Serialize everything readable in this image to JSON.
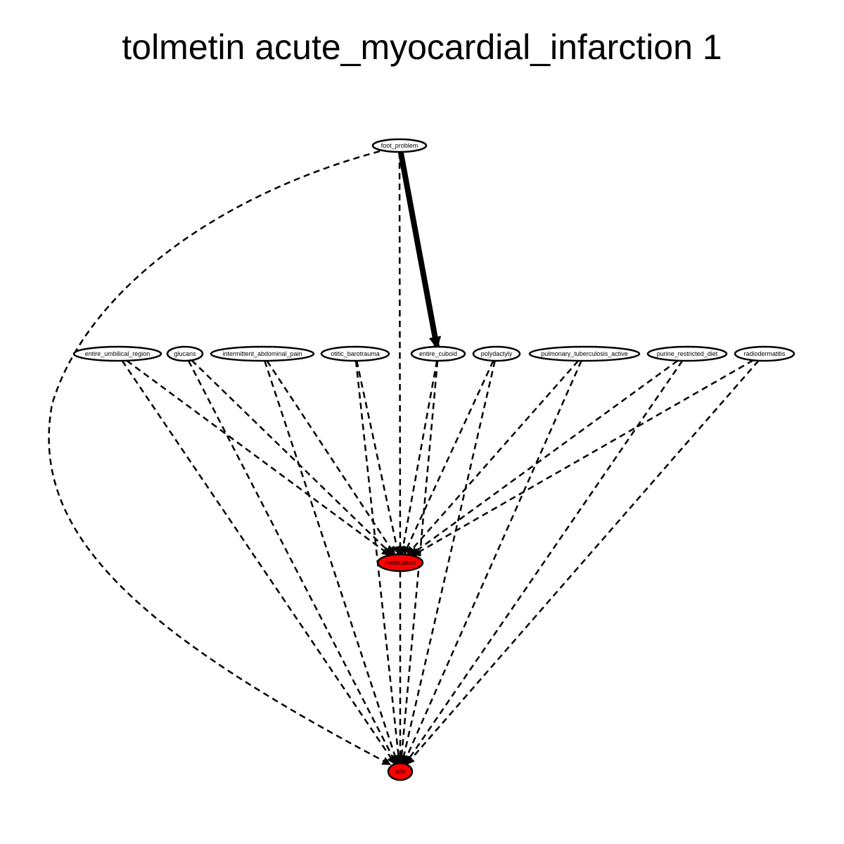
{
  "title": "tolmetin acute_myocardial_infarction 1",
  "colors": {
    "default_fill": "#ffffff",
    "target_fill": "#ff0000",
    "stroke": "#000000"
  },
  "nodes": [
    {
      "id": "foot_problem",
      "label": "foot_problem",
      "type": "default"
    },
    {
      "id": "entire_umbilical_region",
      "label": "entire_umbilical_region",
      "type": "default"
    },
    {
      "id": "glucans",
      "label": "glucans",
      "type": "default"
    },
    {
      "id": "intermittent_abdominal_pain",
      "label": "intermittent_abdominal_pain",
      "type": "default"
    },
    {
      "id": "otitic_barotrauma",
      "label": "otitic_barotrauma",
      "type": "default"
    },
    {
      "id": "entire_cuboid",
      "label": "entire_cuboid",
      "type": "default"
    },
    {
      "id": "polydactyly",
      "label": "polydactyly",
      "type": "default"
    },
    {
      "id": "pulmonary_tuberculosis_active",
      "label": "pulmonary_tuberculosis_active",
      "type": "default"
    },
    {
      "id": "purine_restricted_diet",
      "label": "purine_restricted_diet",
      "type": "default"
    },
    {
      "id": "radiodermatitis",
      "label": "radiodermatitis",
      "type": "default"
    },
    {
      "id": "medication",
      "label": "medication",
      "type": "target"
    },
    {
      "id": "ade",
      "label": "ade",
      "type": "target"
    }
  ],
  "edges": [
    {
      "from": "foot_problem",
      "to": "entire_cuboid",
      "style": "solid"
    },
    {
      "from": "foot_problem",
      "to": "medication",
      "style": "dashed"
    },
    {
      "from": "foot_problem",
      "to": "ade",
      "style": "dashed"
    },
    {
      "from": "entire_umbilical_region",
      "to": "medication",
      "style": "dashed"
    },
    {
      "from": "entire_umbilical_region",
      "to": "ade",
      "style": "dashed"
    },
    {
      "from": "glucans",
      "to": "medication",
      "style": "dashed"
    },
    {
      "from": "glucans",
      "to": "ade",
      "style": "dashed"
    },
    {
      "from": "intermittent_abdominal_pain",
      "to": "medication",
      "style": "dashed"
    },
    {
      "from": "intermittent_abdominal_pain",
      "to": "ade",
      "style": "dashed"
    },
    {
      "from": "otitic_barotrauma",
      "to": "medication",
      "style": "dashed"
    },
    {
      "from": "otitic_barotrauma",
      "to": "ade",
      "style": "dashed"
    },
    {
      "from": "entire_cuboid",
      "to": "medication",
      "style": "dashed"
    },
    {
      "from": "entire_cuboid",
      "to": "ade",
      "style": "dashed"
    },
    {
      "from": "polydactyly",
      "to": "medication",
      "style": "dashed"
    },
    {
      "from": "polydactyly",
      "to": "ade",
      "style": "dashed"
    },
    {
      "from": "pulmonary_tuberculosis_active",
      "to": "medication",
      "style": "dashed"
    },
    {
      "from": "pulmonary_tuberculosis_active",
      "to": "ade",
      "style": "dashed"
    },
    {
      "from": "purine_restricted_diet",
      "to": "medication",
      "style": "dashed"
    },
    {
      "from": "purine_restricted_diet",
      "to": "ade",
      "style": "dashed"
    },
    {
      "from": "radiodermatitis",
      "to": "medication",
      "style": "dashed"
    },
    {
      "from": "radiodermatitis",
      "to": "ade",
      "style": "dashed"
    },
    {
      "from": "medication",
      "to": "ade",
      "style": "dashed"
    }
  ]
}
